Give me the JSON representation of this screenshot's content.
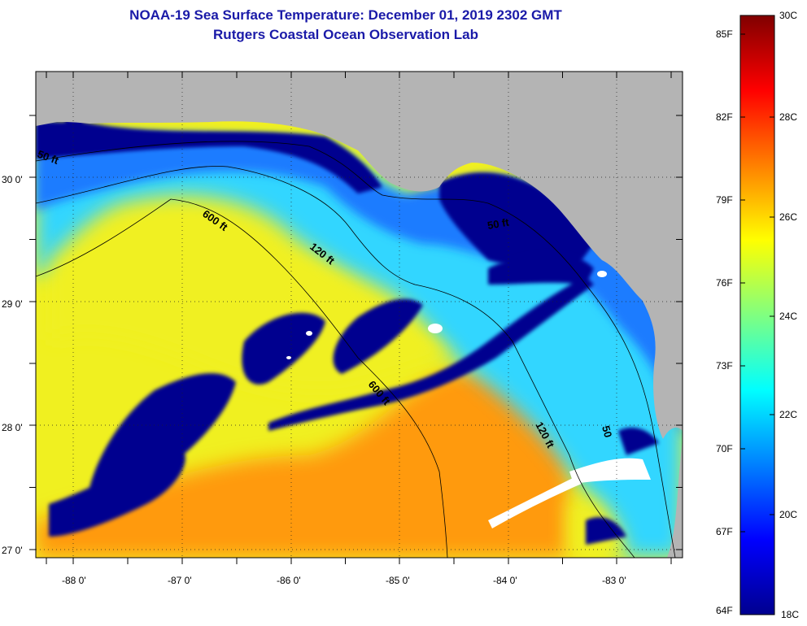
{
  "title": "NOAA-19 Sea Surface Temperature:  December 01, 2019 2302 GMT",
  "subtitle": "Rutgers Coastal Ocean Observation Lab",
  "map": {
    "lon_labels": [
      "-88 0'",
      "-87 0'",
      "-86 0'",
      "-85 0'",
      "-84 0'",
      "-83 0'"
    ],
    "lat_labels": [
      "30 0'",
      "29 0'",
      "28 0'",
      "27 0'"
    ],
    "contour_labels": [
      "50 ft",
      "600 ft",
      "120 ft",
      "50 ft",
      "600 ft",
      "120 ft",
      "50"
    ],
    "colors": {
      "land": "#b4b4b4",
      "cold": "#00008f",
      "cool": "#1a7cff",
      "mild": "#33d6ff",
      "warm": "#f0f020",
      "hot": "#ff9a10",
      "clouds": "#ffffff"
    }
  },
  "colorbar": {
    "fahrenheit_labels": [
      "85F",
      "82F",
      "79F",
      "76F",
      "73F",
      "70F",
      "67F",
      "64F"
    ],
    "celsius_labels": [
      "30C",
      "28C",
      "26C",
      "24C",
      "22C",
      "20C",
      "18C"
    ],
    "stops": [
      "#00008f",
      "#0000ff",
      "#0080ff",
      "#00ffff",
      "#80ff80",
      "#ffff00",
      "#ff8000",
      "#ff0000",
      "#800000"
    ]
  }
}
